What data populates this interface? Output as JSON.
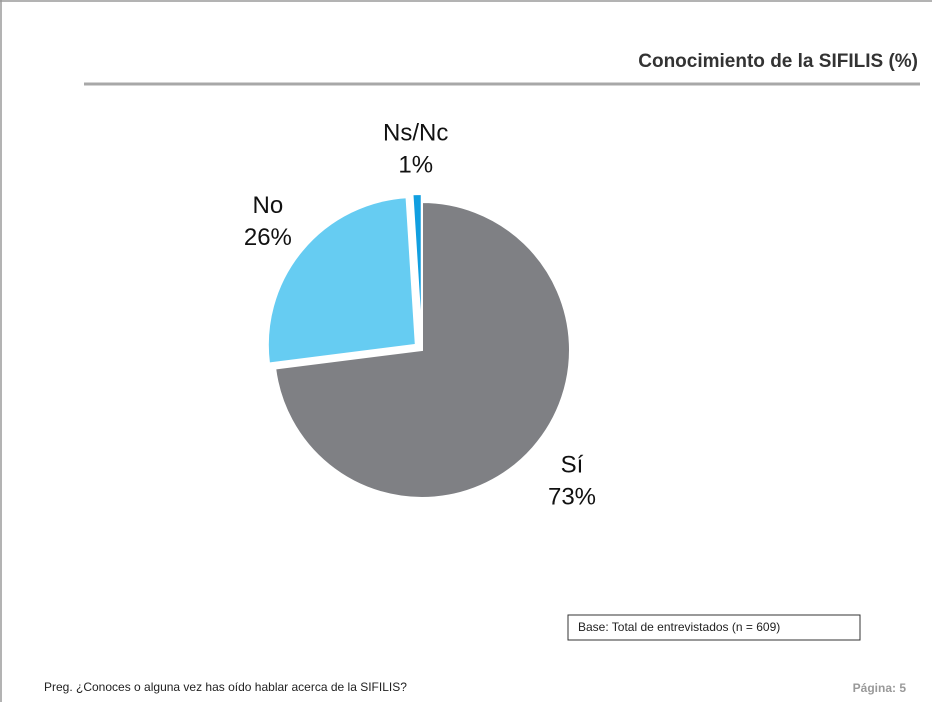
{
  "chart_data": {
    "type": "pie",
    "title": "Conocimiento de la SIFILIS  (%)",
    "categories": [
      "Sí",
      "No",
      "Ns/Nc"
    ],
    "values": [
      73,
      26,
      1
    ],
    "value_labels": [
      "73%",
      "26%",
      "1%"
    ],
    "colors": [
      "#7f8084",
      "#66ccf2",
      "#119fe0"
    ]
  },
  "base_note": "Base: Total de entrevistados (n = 609)",
  "question": "Preg. ¿Conoces o alguna vez has oído hablar acerca de la SIFILIS?",
  "page": "Página: 5"
}
